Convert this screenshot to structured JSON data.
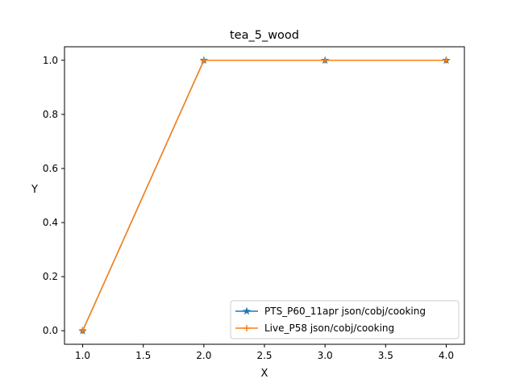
{
  "chart_data": {
    "type": "line",
    "title": "tea_5_wood",
    "xlabel": "X",
    "ylabel": "Y",
    "xlim": [
      0.85,
      4.15
    ],
    "ylim": [
      -0.05,
      1.05
    ],
    "xticks": [
      1.0,
      1.5,
      2.0,
      2.5,
      3.0,
      3.5,
      4.0
    ],
    "xtick_labels": [
      "1.0",
      "1.5",
      "2.0",
      "2.5",
      "3.0",
      "3.5",
      "4.0"
    ],
    "yticks": [
      0.0,
      0.2,
      0.4,
      0.6,
      0.8,
      1.0
    ],
    "ytick_labels": [
      "0.0",
      "0.2",
      "0.4",
      "0.6",
      "0.8",
      "1.0"
    ],
    "grid": false,
    "legend_position": "lower-right",
    "series": [
      {
        "name": "PTS_P60_11apr json/cobj/cooking",
        "color": "#1f77b4",
        "marker": "star",
        "x": [
          1,
          2,
          3,
          4
        ],
        "y": [
          0,
          1,
          1,
          1
        ]
      },
      {
        "name": "Live_P58 json/cobj/cooking",
        "color": "#ff7f0e",
        "marker": "plus",
        "x": [
          1,
          2,
          3,
          4
        ],
        "y": [
          0,
          1,
          1,
          1
        ]
      }
    ]
  }
}
